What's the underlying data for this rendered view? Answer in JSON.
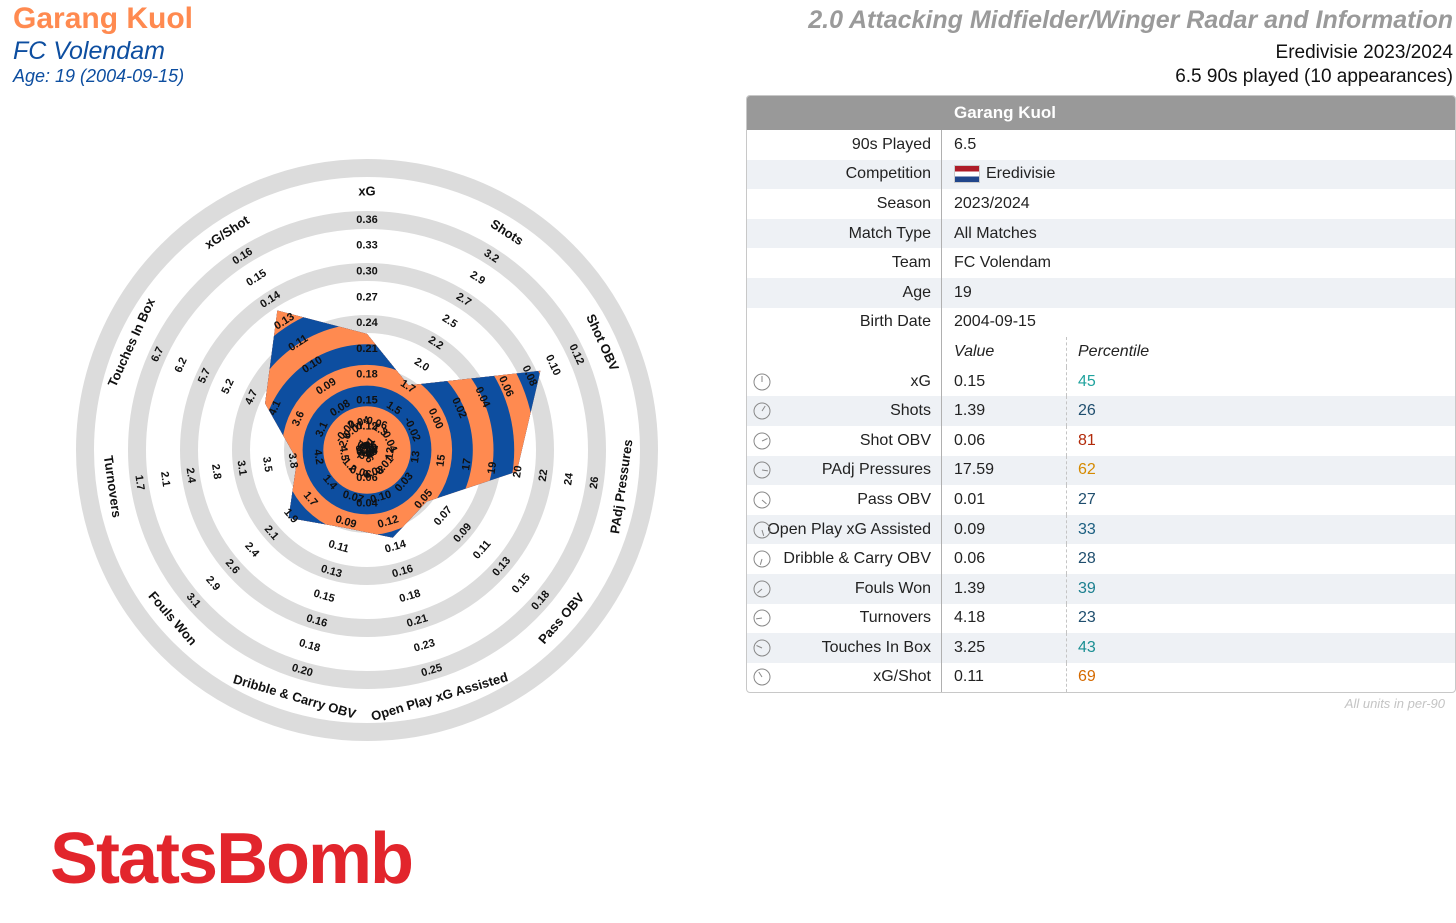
{
  "header": {
    "player_name": "Garang Kuol",
    "team": "FC Volendam",
    "age_line": "Age: 19 (2004-09-15)",
    "radar_title": "2.0 Attacking Midfielder/Winger Radar and Information",
    "competition_line": "Eredivisie 2023/2024",
    "played_line": "6.5 90s played (10 appearances)"
  },
  "colors": {
    "orange": "#ff8a50",
    "blue": "#0d4ea0",
    "ring": "#dcdcdc",
    "logo": "#e2252c"
  },
  "table": {
    "title": "Garang Kuol",
    "info": [
      {
        "label": "90s Played",
        "value": "6.5"
      },
      {
        "label": "Competition",
        "value": "Eredivisie",
        "flag": "netherlands-flag-icon"
      },
      {
        "label": "Season",
        "value": "2023/2024"
      },
      {
        "label": "Match Type",
        "value": "All Matches"
      },
      {
        "label": "Team",
        "value": "FC Volendam"
      },
      {
        "label": "Age",
        "value": "19"
      },
      {
        "label": "Birth Date",
        "value": "2004-09-15"
      }
    ],
    "value_header": "Value",
    "percentile_header": "Percentile",
    "metrics": [
      {
        "label": "xG",
        "value": "0.15",
        "percentile": "45",
        "color": "#20a39e"
      },
      {
        "label": "Shots",
        "value": "1.39",
        "percentile": "26",
        "color": "#1f4e6e"
      },
      {
        "label": "Shot OBV",
        "value": "0.06",
        "percentile": "81",
        "color": "#b22a0a"
      },
      {
        "label": "PAdj Pressures",
        "value": "17.59",
        "percentile": "62",
        "color": "#d58a00"
      },
      {
        "label": "Pass OBV",
        "value": "0.01",
        "percentile": "27",
        "color": "#1f4e6e"
      },
      {
        "label": "Open Play xG Assisted",
        "value": "0.09",
        "percentile": "33",
        "color": "#1a5e80"
      },
      {
        "label": "Dribble & Carry OBV",
        "value": "0.06",
        "percentile": "28",
        "color": "#1f4e6e"
      },
      {
        "label": "Fouls Won",
        "value": "1.39",
        "percentile": "39",
        "color": "#1b7f8f"
      },
      {
        "label": "Turnovers",
        "value": "4.18",
        "percentile": "23",
        "color": "#1f4e6e"
      },
      {
        "label": "Touches In Box",
        "value": "3.25",
        "percentile": "43",
        "color": "#1b8f93"
      },
      {
        "label": "xG/Shot",
        "value": "0.11",
        "percentile": "69",
        "color": "#d56a00"
      }
    ],
    "units_note": "All units in per-90"
  },
  "logo_text": "StatsBomb",
  "chart_data": {
    "type": "radar",
    "axes": [
      {
        "name": "xG",
        "value": 0.15,
        "ticks": [
          "0.04",
          "0.06",
          "0.09",
          "0.12",
          "0.15",
          "0.18",
          "0.21",
          "0.24",
          "0.27",
          "0.30",
          "0.33",
          "0.36"
        ]
      },
      {
        "name": "Shots",
        "value": 1.39,
        "ticks": [
          "1.0",
          "1.3",
          "1.5",
          "1.7",
          "2.0",
          "2.2",
          "2.5",
          "2.7",
          "2.9",
          "3.2"
        ]
      },
      {
        "name": "Shot OBV",
        "value": 0.06,
        "ticks": [
          "-0.06",
          "-0.04",
          "-0.02",
          "0.00",
          "0.02",
          "0.04",
          "0.06",
          "0.08",
          "0.10",
          "0.12"
        ]
      },
      {
        "name": "PAdj Pressures",
        "value": 17.59,
        "ticks": [
          "10",
          "12",
          "13",
          "15",
          "17",
          "19",
          "20",
          "22",
          "24",
          "26"
        ]
      },
      {
        "name": "Pass OBV",
        "value": 0.01,
        "ticks": [
          "-0.02",
          "-0.01",
          "0.01",
          "0.03",
          "0.05",
          "0.07",
          "0.09",
          "0.11",
          "0.13",
          "0.15",
          "0.18"
        ]
      },
      {
        "name": "Open Play xG Assisted",
        "value": 0.09,
        "ticks": [
          "0.04",
          "0.06",
          "0.08",
          "0.10",
          "0.12",
          "0.14",
          "0.16",
          "0.18",
          "0.21",
          "0.23",
          "0.25"
        ]
      },
      {
        "name": "Dribble & Carry OBV",
        "value": 0.06,
        "ticks": [
          "-0.06",
          "0.04",
          "0.06",
          "0.07",
          "0.09",
          "0.11",
          "0.13",
          "0.15",
          "0.16",
          "0.18",
          "0.20"
        ]
      },
      {
        "name": "Fouls Won",
        "value": 1.39,
        "ticks": [
          "0.9",
          "1.2",
          "1.4",
          "1.7",
          "1.9",
          "2.1",
          "2.4",
          "2.6",
          "2.9",
          "3.1"
        ]
      },
      {
        "name": "Turnovers",
        "value": 4.18,
        "ticks": [
          "4.9",
          "4.5",
          "4.2",
          "3.8",
          "3.5",
          "3.1",
          "2.8",
          "2.4",
          "2.1",
          "1.7"
        ]
      },
      {
        "name": "Touches In Box",
        "value": 3.25,
        "ticks": [
          "2.1",
          "2.6",
          "3.1",
          "3.6",
          "4.1",
          "4.7",
          "5.2",
          "5.7",
          "6.2",
          "6.7"
        ]
      },
      {
        "name": "xG/Shot",
        "value": 0.11,
        "ticks": [
          "0.06",
          "0.07",
          "0.08",
          "0.09",
          "0.10",
          "0.11",
          "0.13",
          "0.14",
          "0.15",
          "0.16"
        ]
      }
    ],
    "percentiles": [
      45,
      26,
      81,
      62,
      27,
      33,
      28,
      39,
      23,
      43,
      69
    ]
  }
}
